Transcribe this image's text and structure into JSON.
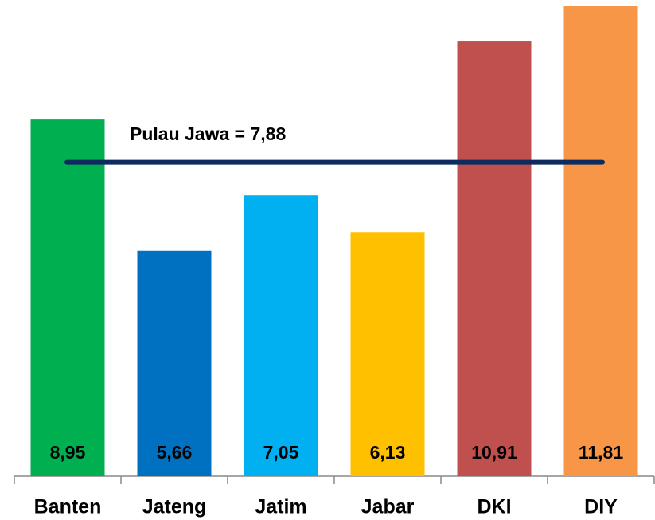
{
  "chart_data": {
    "type": "bar",
    "categories": [
      "Banten",
      "Jateng",
      "Jatim",
      "Jabar",
      "DKI",
      "DIY"
    ],
    "values": [
      8.95,
      5.66,
      7.05,
      6.13,
      10.91,
      11.81
    ],
    "value_labels": [
      "8,95",
      "5,66",
      "7,05",
      "6,13",
      "10,91",
      "11,81"
    ],
    "colors": [
      "#00b050",
      "#0070c0",
      "#00b0f0",
      "#ffc000",
      "#c0504d",
      "#f79646"
    ],
    "ylim": [
      0,
      11.95
    ],
    "reference_line": {
      "value": 7.88,
      "label": "Pulau Jawa = 7,88",
      "color": "#0d2b5e"
    }
  }
}
